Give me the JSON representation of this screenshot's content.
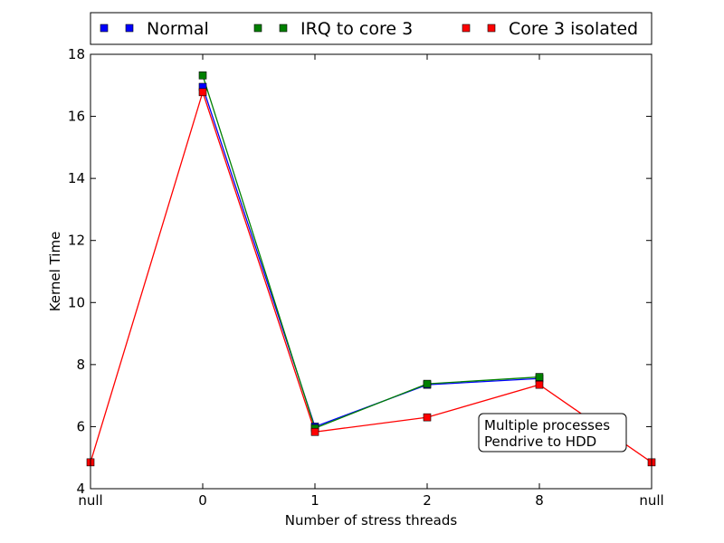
{
  "chart_data": {
    "type": "line",
    "title": "",
    "xlabel": "Number of stress threads",
    "ylabel": "Kernel Time",
    "categories": [
      "null",
      "0",
      "1",
      "2",
      "8",
      "null"
    ],
    "ylim": [
      4,
      18
    ],
    "yticks": [
      4,
      6,
      8,
      10,
      12,
      14,
      16,
      18
    ],
    "grid": false,
    "legend_position": "top",
    "series": [
      {
        "name": "Normal",
        "color": "#0000ff",
        "marker": "square",
        "values": [
          null,
          16.95,
          6.0,
          7.35,
          7.55,
          null
        ]
      },
      {
        "name": "IRQ to core 3",
        "color": "#008000",
        "marker": "square",
        "values": [
          null,
          17.32,
          5.95,
          7.38,
          7.6,
          null
        ]
      },
      {
        "name": "Core 3 isolated",
        "color": "#ff0000",
        "marker": "square",
        "values": [
          4.85,
          16.78,
          5.83,
          6.3,
          7.35,
          4.85
        ]
      }
    ],
    "annotation": {
      "lines": [
        "Multiple processes",
        "Pendrive to HDD"
      ]
    }
  }
}
